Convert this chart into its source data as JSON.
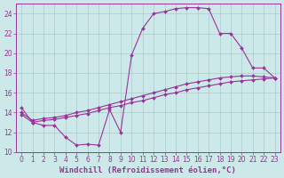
{
  "line1_x": [
    0,
    1,
    2,
    3,
    4,
    5,
    6,
    7,
    8,
    9,
    10,
    11,
    12,
    13,
    14,
    15,
    16,
    17,
    18,
    19,
    20,
    21,
    22,
    23
  ],
  "line1_y": [
    14.5,
    13.0,
    12.7,
    12.7,
    11.5,
    10.7,
    10.8,
    10.7,
    14.3,
    12.0,
    19.8,
    22.5,
    24.0,
    24.2,
    24.5,
    24.6,
    24.6,
    24.5,
    22.0,
    22.0,
    20.5,
    18.5,
    18.5,
    17.5
  ],
  "line2_x": [
    0,
    1,
    2,
    3,
    4,
    5,
    6,
    7,
    8,
    9,
    10,
    11,
    12,
    13,
    14,
    15,
    16,
    17,
    18,
    19,
    20,
    21,
    22,
    23
  ],
  "line2_y": [
    13.8,
    13.0,
    13.2,
    13.3,
    13.5,
    13.7,
    13.9,
    14.2,
    14.5,
    14.7,
    15.0,
    15.2,
    15.5,
    15.8,
    16.0,
    16.3,
    16.5,
    16.7,
    16.9,
    17.1,
    17.2,
    17.3,
    17.4,
    17.5
  ],
  "line3_x": [
    0,
    1,
    2,
    3,
    4,
    5,
    6,
    7,
    8,
    9,
    10,
    11,
    12,
    13,
    14,
    15,
    16,
    17,
    18,
    19,
    20,
    21,
    22,
    23
  ],
  "line3_y": [
    14.0,
    13.2,
    13.4,
    13.5,
    13.7,
    14.0,
    14.2,
    14.5,
    14.8,
    15.1,
    15.4,
    15.7,
    16.0,
    16.3,
    16.6,
    16.9,
    17.1,
    17.3,
    17.5,
    17.6,
    17.7,
    17.7,
    17.6,
    17.5
  ],
  "line_color": "#993399",
  "marker": "D",
  "markersize": 2.0,
  "linewidth": 0.8,
  "bg_color": "#cce8e8",
  "grid_color": "#aacccc",
  "axis_color": "#993399",
  "xlabel": "Windchill (Refroidissement éolien,°C)",
  "xlabel_fontsize": 6.5,
  "ylim": [
    10,
    25
  ],
  "xlim_min": -0.5,
  "xlim_max": 23.5,
  "yticks": [
    10,
    12,
    14,
    16,
    18,
    20,
    22,
    24
  ],
  "xticks": [
    0,
    1,
    2,
    3,
    4,
    5,
    6,
    7,
    8,
    9,
    10,
    11,
    12,
    13,
    14,
    15,
    16,
    17,
    18,
    19,
    20,
    21,
    22,
    23
  ],
  "tick_fontsize": 5.5
}
